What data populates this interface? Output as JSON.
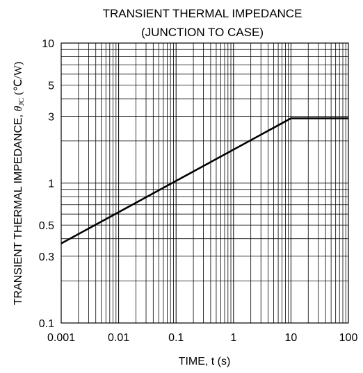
{
  "chart_data": {
    "type": "line",
    "title": "TRANSIENT THERMAL IMPEDANCE",
    "subtitle": "(JUNCTION TO CASE)",
    "xlabel": "TIME, t (s)",
    "ylabel_main": "TRANSIENT THERMAL IMPEDANCE, ",
    "ylabel_symbol": "θ",
    "ylabel_subscript": "JC",
    "ylabel_unit": " (℃/W)",
    "x_scale": "log",
    "y_scale": "log",
    "xlim": [
      0.001,
      100
    ],
    "ylim": [
      0.1,
      10
    ],
    "grid": true,
    "x_ticks": [
      {
        "value": 0.001,
        "label": "0.001"
      },
      {
        "value": 0.01,
        "label": "0.01"
      },
      {
        "value": 0.1,
        "label": "0.1"
      },
      {
        "value": 1,
        "label": "1"
      },
      {
        "value": 10,
        "label": "10"
      },
      {
        "value": 100,
        "label": "100"
      }
    ],
    "y_ticks": [
      {
        "value": 0.1,
        "label": "0.1"
      },
      {
        "value": 0.3,
        "label": "0.3"
      },
      {
        "value": 0.5,
        "label": "0.5"
      },
      {
        "value": 1,
        "label": "1"
      },
      {
        "value": 3,
        "label": "3"
      },
      {
        "value": 5,
        "label": "5"
      },
      {
        "value": 10,
        "label": "10"
      }
    ],
    "series": [
      {
        "x": [
          0.001,
          10,
          100
        ],
        "y": [
          0.37,
          2.9,
          2.9
        ]
      }
    ]
  }
}
